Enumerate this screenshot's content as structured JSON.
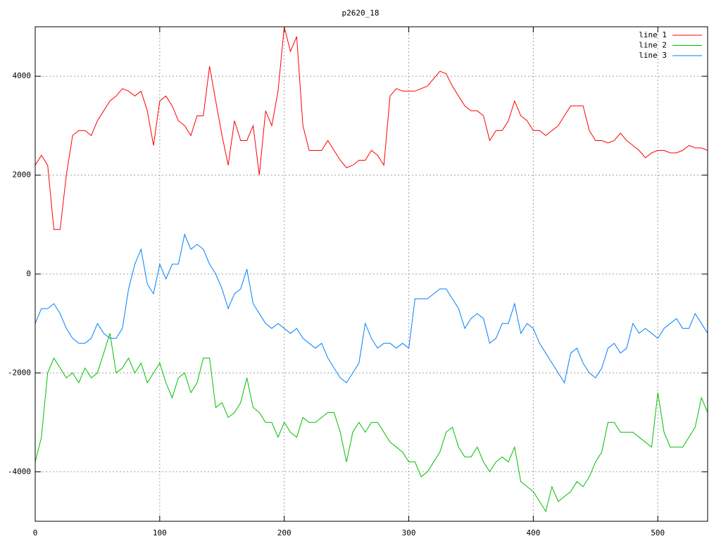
{
  "chart_data": {
    "type": "line",
    "title": "p2620_18",
    "x": [
      0,
      5,
      10,
      15,
      20,
      25,
      30,
      35,
      40,
      45,
      50,
      55,
      60,
      65,
      70,
      75,
      80,
      85,
      90,
      95,
      100,
      105,
      110,
      115,
      120,
      125,
      130,
      135,
      140,
      145,
      150,
      155,
      160,
      165,
      170,
      175,
      180,
      185,
      190,
      195,
      200,
      205,
      210,
      215,
      220,
      225,
      230,
      235,
      240,
      245,
      250,
      255,
      260,
      265,
      270,
      275,
      280,
      285,
      290,
      295,
      300,
      305,
      310,
      315,
      320,
      325,
      330,
      335,
      340,
      345,
      350,
      355,
      360,
      365,
      370,
      375,
      380,
      385,
      390,
      395,
      400,
      405,
      410,
      415,
      420,
      425,
      430,
      435,
      440,
      445,
      450,
      455,
      460,
      465,
      470,
      475,
      480,
      485,
      490,
      495,
      500,
      505,
      510,
      515,
      520,
      525,
      530,
      535,
      540
    ],
    "series": [
      {
        "name": "line 1",
        "color": "#ff0000",
        "values": [
          2200,
          2400,
          2200,
          900,
          900,
          2000,
          2800,
          2900,
          2900,
          2800,
          3100,
          3300,
          3500,
          3600,
          3750,
          3700,
          3600,
          3700,
          3300,
          2600,
          3500,
          3600,
          3400,
          3100,
          3000,
          2800,
          3200,
          3200,
          4200,
          3500,
          2800,
          2200,
          3100,
          2700,
          2700,
          3000,
          2000,
          3300,
          3000,
          3700,
          5000,
          4500,
          4800,
          3000,
          2500,
          2500,
          2500,
          2700,
          2500,
          2300,
          2150,
          2200,
          2300,
          2300,
          2500,
          2400,
          2200,
          3600,
          3750,
          3700,
          3700,
          3700,
          3750,
          3800,
          3950,
          4100,
          4050,
          3800,
          3600,
          3400,
          3300,
          3300,
          3200,
          2700,
          2900,
          2900,
          3100,
          3500,
          3200,
          3100,
          2900,
          2900,
          2800,
          2900,
          3000,
          3200,
          3400,
          3400,
          3400,
          2900,
          2700,
          2700,
          2650,
          2700,
          2850,
          2700,
          2600,
          2500,
          2350,
          2450,
          2500,
          2500,
          2450,
          2450,
          2500,
          2600,
          2550,
          2550,
          2500
        ]
      },
      {
        "name": "line 2",
        "color": "#00c000",
        "values": [
          -3800,
          -3300,
          -2000,
          -1700,
          -1900,
          -2100,
          -2000,
          -2200,
          -1900,
          -2100,
          -2000,
          -1600,
          -1200,
          -2000,
          -1900,
          -1700,
          -2000,
          -1800,
          -2200,
          -2000,
          -1800,
          -2200,
          -2500,
          -2100,
          -2000,
          -2400,
          -2200,
          -1700,
          -1700,
          -2700,
          -2600,
          -2900,
          -2800,
          -2600,
          -2100,
          -2700,
          -2800,
          -3000,
          -3000,
          -3300,
          -3000,
          -3200,
          -3300,
          -2900,
          -3000,
          -3000,
          -2900,
          -2800,
          -2800,
          -3200,
          -3800,
          -3200,
          -3000,
          -3200,
          -3000,
          -3000,
          -3200,
          -3400,
          -3500,
          -3600,
          -3800,
          -3800,
          -4100,
          -4000,
          -3800,
          -3600,
          -3200,
          -3100,
          -3500,
          -3700,
          -3700,
          -3500,
          -3800,
          -4000,
          -3800,
          -3700,
          -3800,
          -3500,
          -4200,
          -4300,
          -4400,
          -4600,
          -4800,
          -4300,
          -4600,
          -4500,
          -4400,
          -4200,
          -4300,
          -4100,
          -3800,
          -3600,
          -3000,
          -3000,
          -3200,
          -3200,
          -3200,
          -3300,
          -3400,
          -3500,
          -2400,
          -3200,
          -3500,
          -3500,
          -3500,
          -3300,
          -3100,
          -2500,
          -2800
        ]
      },
      {
        "name": "line 3",
        "color": "#0080ff",
        "values": [
          -1000,
          -700,
          -700,
          -600,
          -800,
          -1100,
          -1300,
          -1400,
          -1400,
          -1300,
          -1000,
          -1200,
          -1300,
          -1300,
          -1100,
          -300,
          200,
          500,
          -200,
          -400,
          200,
          -100,
          200,
          200,
          800,
          500,
          600,
          500,
          200,
          0,
          -300,
          -700,
          -400,
          -300,
          100,
          -600,
          -800,
          -1000,
          -1100,
          -1000,
          -1100,
          -1200,
          -1100,
          -1300,
          -1400,
          -1500,
          -1400,
          -1700,
          -1900,
          -2100,
          -2200,
          -2000,
          -1800,
          -1000,
          -1300,
          -1500,
          -1400,
          -1400,
          -1500,
          -1400,
          -1500,
          -500,
          -500,
          -500,
          -400,
          -300,
          -300,
          -500,
          -700,
          -1100,
          -900,
          -800,
          -900,
          -1400,
          -1300,
          -1000,
          -1000,
          -600,
          -1200,
          -1000,
          -1100,
          -1400,
          -1600,
          -1800,
          -2000,
          -2200,
          -1600,
          -1500,
          -1800,
          -2000,
          -2100,
          -1900,
          -1500,
          -1400,
          -1600,
          -1500,
          -1000,
          -1200,
          -1100,
          -1200,
          -1300,
          -1100,
          -1000,
          -900,
          -1100,
          -1100,
          -800,
          -1000,
          -1200
        ]
      }
    ],
    "xlim": [
      0,
      540
    ],
    "xticks": [
      0,
      100,
      200,
      300,
      400,
      500
    ],
    "ylim": [
      -5000,
      5000
    ],
    "yticks": [
      -4000,
      -2000,
      0,
      2000,
      4000
    ],
    "grid": true,
    "legend": "top-right"
  }
}
